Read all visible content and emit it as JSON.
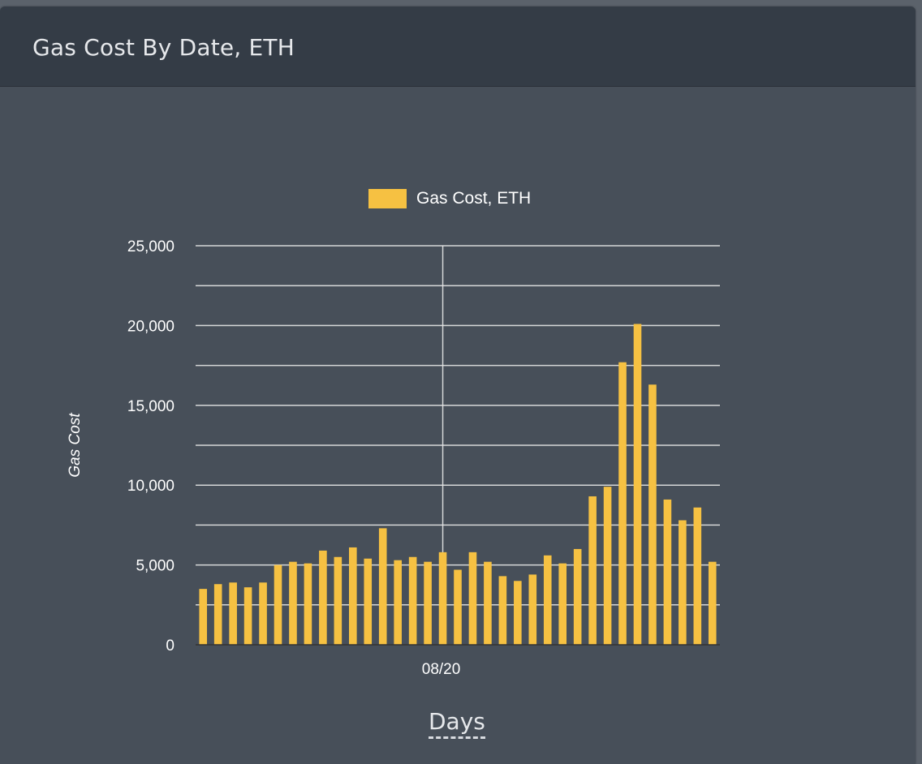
{
  "panel": {
    "title": "Gas Cost By Date, ETH"
  },
  "chart_data": {
    "type": "bar",
    "title": "",
    "xlabel": "Days",
    "ylabel": "Gas Cost",
    "ylim": [
      0,
      25000
    ],
    "yticks": [
      0,
      5000,
      10000,
      15000,
      20000,
      25000
    ],
    "ytick_labels": [
      "0",
      "5,000",
      "10,000",
      "15,000",
      "20,000",
      "25,000"
    ],
    "xtick_labels": [
      "08/20"
    ],
    "xtick_position_index": 16.5,
    "grid": true,
    "legend_position": "top",
    "series": [
      {
        "name": "Gas Cost, ETH",
        "color": "#f6c142",
        "values": [
          3500,
          3800,
          3900,
          3600,
          3900,
          5000,
          5200,
          5100,
          5900,
          5500,
          6100,
          5400,
          7300,
          5300,
          5500,
          5200,
          5800,
          4700,
          5800,
          5200,
          4300,
          4000,
          4400,
          5600,
          5100,
          6000,
          9300,
          9900,
          17700,
          20100,
          16300,
          9100,
          7800,
          8600,
          5200
        ]
      }
    ]
  },
  "colors": {
    "background": "#474f59",
    "header": "#343c46",
    "grid": "#e6e6e6",
    "bar": "#f6c142",
    "text": "#ffffff"
  }
}
